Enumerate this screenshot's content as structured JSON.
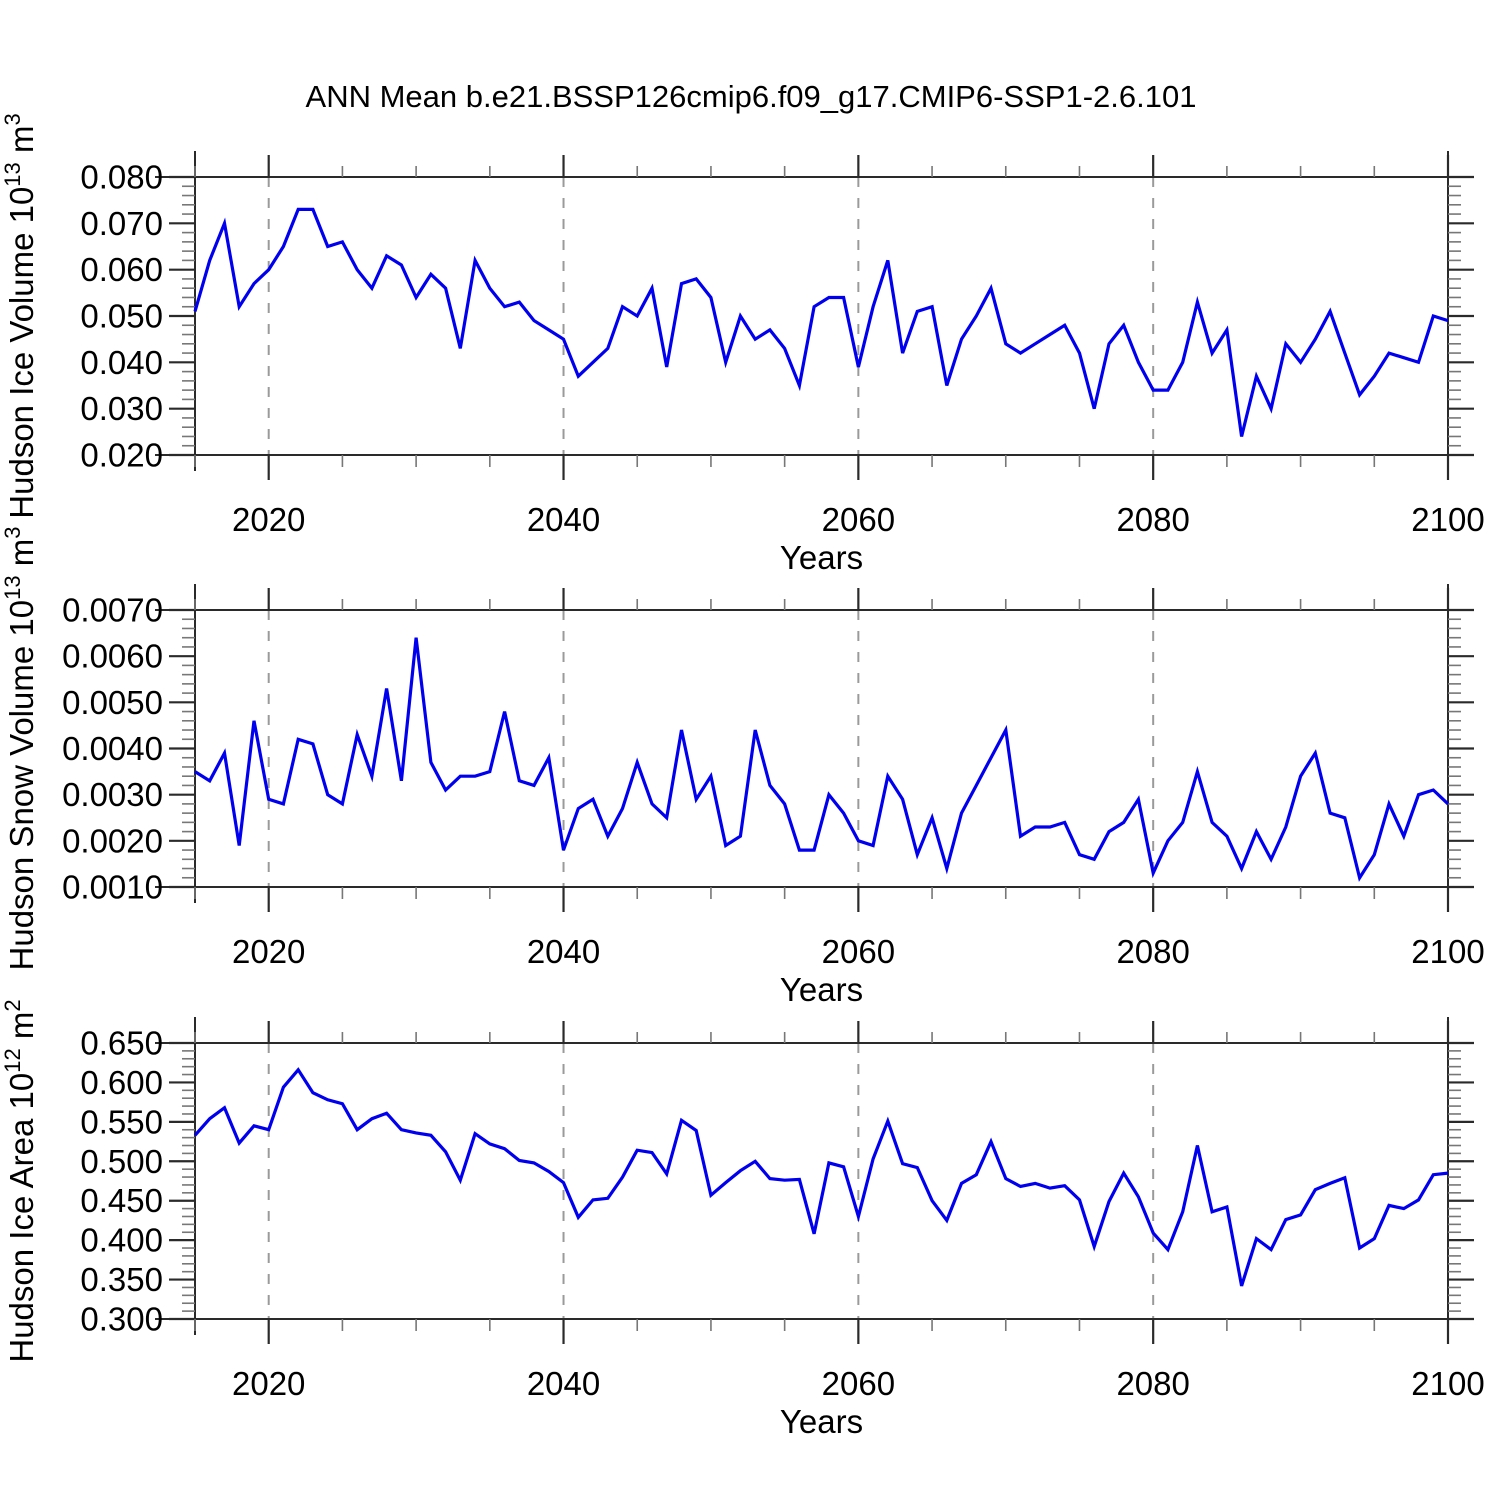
{
  "header": {
    "title": "ANN Mean b.e21.BSSP126cmip6.f09_g17.CMIP6-SSP1-2.6.101"
  },
  "style": {
    "line_color": "#0000ee",
    "frame_color": "#2a2a2a",
    "minor_tick_color": "#777777",
    "grid_color": "#9a9a9a",
    "background": "#ffffff"
  },
  "chart_data": [
    {
      "id": "hudson-ice-volume",
      "type": "line",
      "title": "",
      "xlabel": "Years",
      "ylabel": "Hudson Ice Volume 10¹³ m³",
      "legend": "none",
      "grid": "vertical-dashed",
      "line_color": "#0000ee",
      "xlim": [
        2015,
        2100
      ],
      "ylim": [
        0.02,
        0.08
      ],
      "xticks": [
        2020,
        2040,
        2060,
        2080,
        2100
      ],
      "xtick_labels": [
        "2020",
        "2040",
        "2060",
        "2080",
        "2100"
      ],
      "x_minor_step": 5,
      "yticks": [
        0.02,
        0.03,
        0.04,
        0.05,
        0.06,
        0.07,
        0.08
      ],
      "ytick_labels": [
        "0.020",
        "0.030",
        "0.040",
        "0.050",
        "0.060",
        "0.070",
        "0.080"
      ],
      "y_minor_step": 0.002,
      "grid_x_dashed": [
        2020,
        2040,
        2060,
        2080
      ],
      "years": [
        2015,
        2016,
        2017,
        2018,
        2019,
        2020,
        2021,
        2022,
        2023,
        2024,
        2025,
        2026,
        2027,
        2028,
        2029,
        2030,
        2031,
        2032,
        2033,
        2034,
        2035,
        2036,
        2037,
        2038,
        2039,
        2040,
        2041,
        2042,
        2043,
        2044,
        2045,
        2046,
        2047,
        2048,
        2049,
        2050,
        2051,
        2052,
        2053,
        2054,
        2055,
        2056,
        2057,
        2058,
        2059,
        2060,
        2061,
        2062,
        2063,
        2064,
        2065,
        2066,
        2067,
        2068,
        2069,
        2070,
        2071,
        2072,
        2073,
        2074,
        2075,
        2076,
        2077,
        2078,
        2079,
        2080,
        2081,
        2082,
        2083,
        2084,
        2085,
        2086,
        2087,
        2088,
        2089,
        2090,
        2091,
        2092,
        2093,
        2094,
        2095,
        2096,
        2097,
        2098,
        2099,
        2100
      ],
      "values": [
        0.051,
        0.062,
        0.07,
        0.052,
        0.057,
        0.06,
        0.065,
        0.073,
        0.073,
        0.065,
        0.066,
        0.06,
        0.056,
        0.063,
        0.061,
        0.054,
        0.059,
        0.056,
        0.043,
        0.062,
        0.056,
        0.052,
        0.053,
        0.049,
        0.047,
        0.045,
        0.037,
        0.04,
        0.043,
        0.052,
        0.05,
        0.056,
        0.039,
        0.057,
        0.058,
        0.054,
        0.04,
        0.05,
        0.045,
        0.047,
        0.043,
        0.035,
        0.052,
        0.054,
        0.054,
        0.039,
        0.052,
        0.062,
        0.042,
        0.051,
        0.052,
        0.035,
        0.045,
        0.05,
        0.056,
        0.044,
        0.042,
        0.044,
        0.046,
        0.048,
        0.042,
        0.03,
        0.044,
        0.048,
        0.04,
        0.034,
        0.034,
        0.04,
        0.053,
        0.042,
        0.047,
        0.024,
        0.037,
        0.03,
        0.044,
        0.04,
        0.045,
        0.051,
        0.042,
        0.033,
        0.037,
        0.042,
        0.041,
        0.04,
        0.05,
        0.049
      ]
    },
    {
      "id": "hudson-snow-volume",
      "type": "line",
      "title": "",
      "xlabel": "Years",
      "ylabel": "Hudson Snow Volume 10¹³ m³",
      "legend": "none",
      "grid": "vertical-dashed",
      "line_color": "#0000ee",
      "xlim": [
        2015,
        2100
      ],
      "ylim": [
        0.001,
        0.007
      ],
      "xticks": [
        2020,
        2040,
        2060,
        2080,
        2100
      ],
      "xtick_labels": [
        "2020",
        "2040",
        "2060",
        "2080",
        "2100"
      ],
      "x_minor_step": 5,
      "yticks": [
        0.001,
        0.002,
        0.003,
        0.004,
        0.005,
        0.006,
        0.007
      ],
      "ytick_labels": [
        "0.0010",
        "0.0020",
        "0.0030",
        "0.0040",
        "0.0050",
        "0.0060",
        "0.0070"
      ],
      "y_minor_step": 0.0002,
      "grid_x_dashed": [
        2020,
        2040,
        2060,
        2080
      ],
      "years": [
        2015,
        2016,
        2017,
        2018,
        2019,
        2020,
        2021,
        2022,
        2023,
        2024,
        2025,
        2026,
        2027,
        2028,
        2029,
        2030,
        2031,
        2032,
        2033,
        2034,
        2035,
        2036,
        2037,
        2038,
        2039,
        2040,
        2041,
        2042,
        2043,
        2044,
        2045,
        2046,
        2047,
        2048,
        2049,
        2050,
        2051,
        2052,
        2053,
        2054,
        2055,
        2056,
        2057,
        2058,
        2059,
        2060,
        2061,
        2062,
        2063,
        2064,
        2065,
        2066,
        2067,
        2068,
        2069,
        2070,
        2071,
        2072,
        2073,
        2074,
        2075,
        2076,
        2077,
        2078,
        2079,
        2080,
        2081,
        2082,
        2083,
        2084,
        2085,
        2086,
        2087,
        2088,
        2089,
        2090,
        2091,
        2092,
        2093,
        2094,
        2095,
        2096,
        2097,
        2098,
        2099,
        2100
      ],
      "values": [
        0.0035,
        0.0033,
        0.0039,
        0.0019,
        0.0046,
        0.0029,
        0.0028,
        0.0042,
        0.0041,
        0.003,
        0.0028,
        0.0043,
        0.0034,
        0.0053,
        0.0033,
        0.0064,
        0.0037,
        0.0031,
        0.0034,
        0.0034,
        0.0035,
        0.0048,
        0.0033,
        0.0032,
        0.0038,
        0.0018,
        0.0027,
        0.0029,
        0.0021,
        0.0027,
        0.0037,
        0.0028,
        0.0025,
        0.0044,
        0.0029,
        0.0034,
        0.0019,
        0.0021,
        0.0044,
        0.0032,
        0.0028,
        0.0018,
        0.0018,
        0.003,
        0.0026,
        0.002,
        0.0019,
        0.0034,
        0.0029,
        0.0017,
        0.0025,
        0.0014,
        0.0026,
        0.0032,
        0.0038,
        0.0044,
        0.0021,
        0.0023,
        0.0023,
        0.0024,
        0.0017,
        0.0016,
        0.0022,
        0.0024,
        0.0029,
        0.0013,
        0.002,
        0.0024,
        0.0035,
        0.0024,
        0.0021,
        0.0014,
        0.0022,
        0.0016,
        0.0023,
        0.0034,
        0.0039,
        0.0026,
        0.0025,
        0.0012,
        0.0017,
        0.0028,
        0.0021,
        0.003,
        0.0031,
        0.0028
      ]
    },
    {
      "id": "hudson-ice-area",
      "type": "line",
      "title": "",
      "xlabel": "Years",
      "ylabel": "Hudson Ice Area 10¹² m²",
      "legend": "none",
      "grid": "vertical-dashed",
      "line_color": "#0000ee",
      "xlim": [
        2015,
        2100
      ],
      "ylim": [
        0.3,
        0.65
      ],
      "xticks": [
        2020,
        2040,
        2060,
        2080,
        2100
      ],
      "xtick_labels": [
        "2020",
        "2040",
        "2060",
        "2080",
        "2100"
      ],
      "x_minor_step": 5,
      "yticks": [
        0.3,
        0.35,
        0.4,
        0.45,
        0.5,
        0.55,
        0.6,
        0.65
      ],
      "ytick_labels": [
        "0.300",
        "0.350",
        "0.400",
        "0.450",
        "0.500",
        "0.550",
        "0.600",
        "0.650"
      ],
      "y_minor_step": 0.01,
      "grid_x_dashed": [
        2020,
        2040,
        2060,
        2080
      ],
      "years": [
        2015,
        2016,
        2017,
        2018,
        2019,
        2020,
        2021,
        2022,
        2023,
        2024,
        2025,
        2026,
        2027,
        2028,
        2029,
        2030,
        2031,
        2032,
        2033,
        2034,
        2035,
        2036,
        2037,
        2038,
        2039,
        2040,
        2041,
        2042,
        2043,
        2044,
        2045,
        2046,
        2047,
        2048,
        2049,
        2050,
        2051,
        2052,
        2053,
        2054,
        2055,
        2056,
        2057,
        2058,
        2059,
        2060,
        2061,
        2062,
        2063,
        2064,
        2065,
        2066,
        2067,
        2068,
        2069,
        2070,
        2071,
        2072,
        2073,
        2074,
        2075,
        2076,
        2077,
        2078,
        2079,
        2080,
        2081,
        2082,
        2083,
        2084,
        2085,
        2086,
        2087,
        2088,
        2089,
        2090,
        2091,
        2092,
        2093,
        2094,
        2095,
        2096,
        2097,
        2098,
        2099,
        2100
      ],
      "values": [
        0.533,
        0.554,
        0.568,
        0.523,
        0.545,
        0.54,
        0.594,
        0.616,
        0.587,
        0.578,
        0.573,
        0.54,
        0.554,
        0.561,
        0.54,
        0.536,
        0.533,
        0.512,
        0.476,
        0.535,
        0.522,
        0.516,
        0.501,
        0.498,
        0.487,
        0.473,
        0.429,
        0.451,
        0.453,
        0.48,
        0.514,
        0.511,
        0.484,
        0.552,
        0.539,
        0.457,
        0.473,
        0.488,
        0.5,
        0.478,
        0.476,
        0.477,
        0.408,
        0.498,
        0.493,
        0.43,
        0.503,
        0.551,
        0.497,
        0.492,
        0.45,
        0.425,
        0.472,
        0.483,
        0.525,
        0.478,
        0.468,
        0.472,
        0.466,
        0.469,
        0.451,
        0.392,
        0.449,
        0.485,
        0.455,
        0.409,
        0.388,
        0.436,
        0.52,
        0.436,
        0.442,
        0.342,
        0.402,
        0.388,
        0.426,
        0.432,
        0.464,
        0.472,
        0.479,
        0.39,
        0.402,
        0.444,
        0.44,
        0.451,
        0.483,
        0.485
      ]
    }
  ]
}
